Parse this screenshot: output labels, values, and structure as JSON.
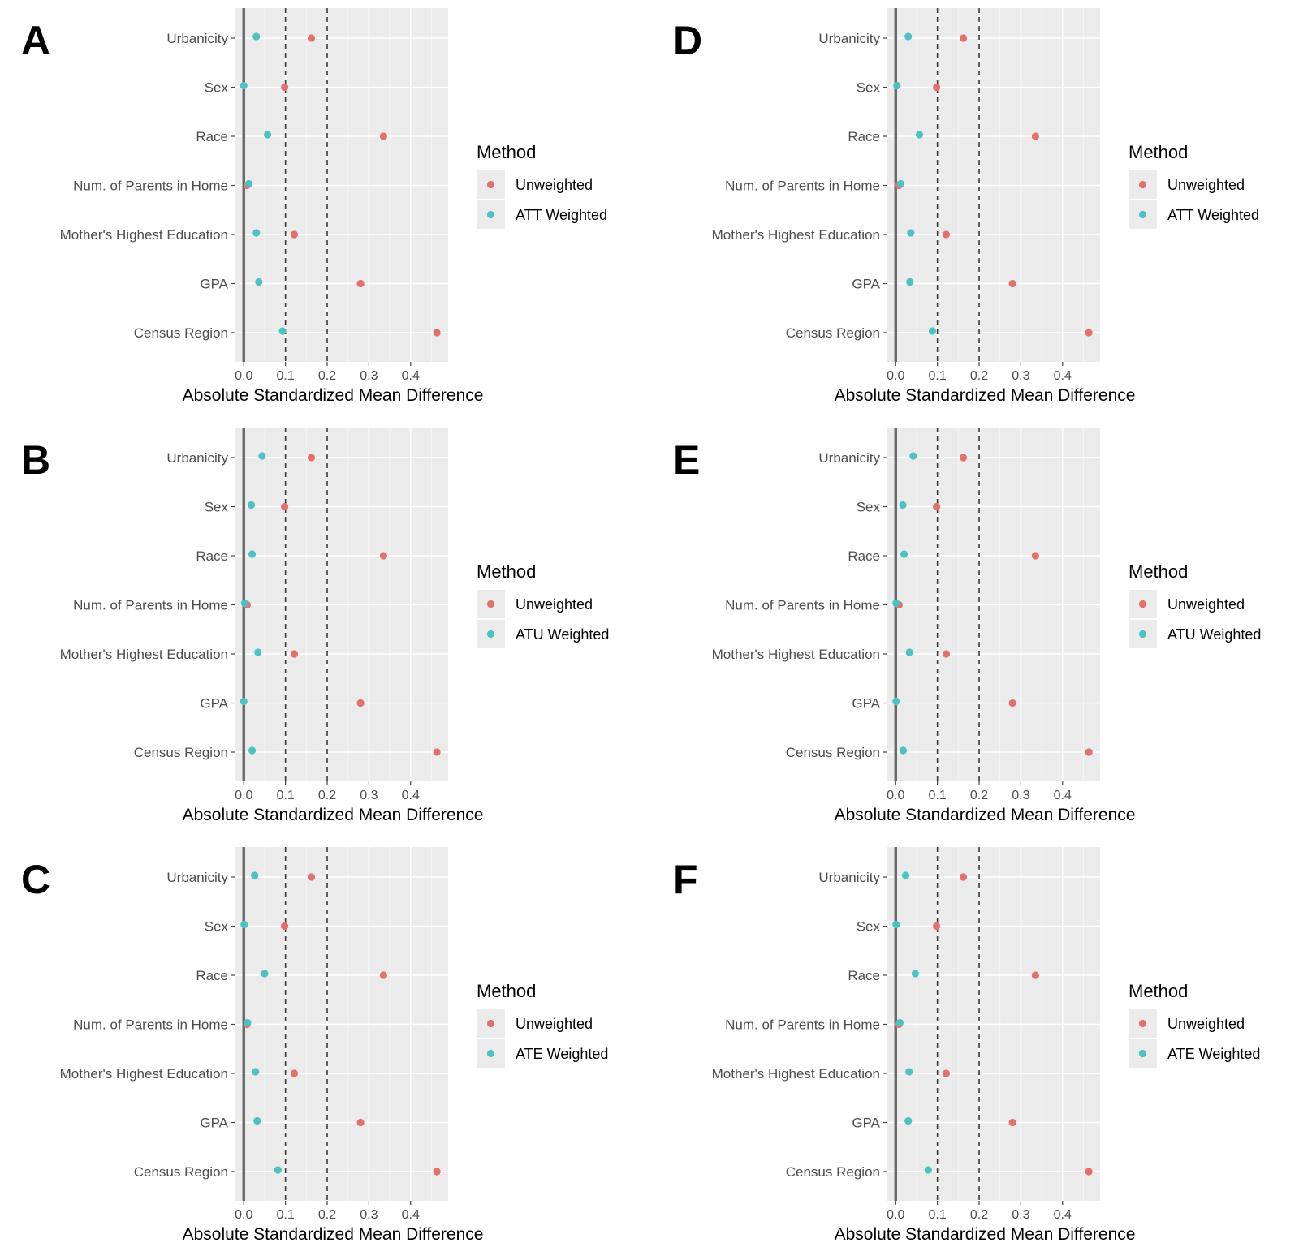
{
  "legend_title": "Method",
  "chart_data": [
    {
      "panel": "A",
      "type": "scatter",
      "xlabel": "Absolute Standardized Mean Difference",
      "xticks": [
        "0.0",
        "0.1",
        "0.2",
        "0.3",
        "0.4"
      ],
      "xlim": [
        -0.02,
        0.49
      ],
      "thresholds": [
        0.1,
        0.2
      ],
      "categories": [
        "Urbanicity",
        "Sex",
        "Race",
        "Num. of Parents in Home",
        "Mother's Highest Education",
        "GPA",
        "Census Region"
      ],
      "legend_title": "Method",
      "series": [
        {
          "name": "Unweighted",
          "color": "#e4706a",
          "values": [
            0.162,
            0.098,
            0.335,
            0.008,
            0.121,
            0.28,
            0.463
          ]
        },
        {
          "name": "ATT Weighted",
          "color": "#4cc2c4",
          "values": [
            0.03,
            0.0,
            0.057,
            0.012,
            0.03,
            0.036,
            0.093
          ]
        }
      ]
    },
    {
      "panel": "B",
      "type": "scatter",
      "xlabel": "Absolute Standardized Mean Difference",
      "xticks": [
        "0.0",
        "0.1",
        "0.2",
        "0.3",
        "0.4"
      ],
      "xlim": [
        -0.02,
        0.49
      ],
      "thresholds": [
        0.1,
        0.2
      ],
      "categories": [
        "Urbanicity",
        "Sex",
        "Race",
        "Num. of Parents in Home",
        "Mother's Highest Education",
        "GPA",
        "Census Region"
      ],
      "legend_title": "Method",
      "series": [
        {
          "name": "Unweighted",
          "color": "#e4706a",
          "values": [
            0.162,
            0.098,
            0.335,
            0.008,
            0.121,
            0.28,
            0.463
          ]
        },
        {
          "name": "ATU Weighted",
          "color": "#4cc2c4",
          "values": [
            0.044,
            0.018,
            0.02,
            0.002,
            0.034,
            0.0,
            0.02
          ]
        }
      ]
    },
    {
      "panel": "C",
      "type": "scatter",
      "xlabel": "Absolute Standardized Mean Difference",
      "xticks": [
        "0.0",
        "0.1",
        "0.2",
        "0.3",
        "0.4"
      ],
      "xlim": [
        -0.02,
        0.49
      ],
      "thresholds": [
        0.1,
        0.2
      ],
      "categories": [
        "Urbanicity",
        "Sex",
        "Race",
        "Num. of Parents in Home",
        "Mother's Highest Education",
        "GPA",
        "Census Region"
      ],
      "legend_title": "Method",
      "series": [
        {
          "name": "Unweighted",
          "color": "#e4706a",
          "values": [
            0.162,
            0.098,
            0.335,
            0.008,
            0.121,
            0.28,
            0.463
          ]
        },
        {
          "name": "ATE Weighted",
          "color": "#4cc2c4",
          "values": [
            0.026,
            0.001,
            0.05,
            0.009,
            0.028,
            0.032,
            0.082
          ]
        }
      ]
    },
    {
      "panel": "D",
      "type": "scatter",
      "xlabel": "Absolute Standardized Mean Difference",
      "xticks": [
        "0.0",
        "0.1",
        "0.2",
        "0.3",
        "0.4"
      ],
      "xlim": [
        -0.02,
        0.49
      ],
      "thresholds": [
        0.1,
        0.2
      ],
      "categories": [
        "Urbanicity",
        "Sex",
        "Race",
        "Num. of Parents in Home",
        "Mother's Highest Education",
        "GPA",
        "Census Region"
      ],
      "legend_title": "Method",
      "series": [
        {
          "name": "Unweighted",
          "color": "#e4706a",
          "values": [
            0.162,
            0.098,
            0.335,
            0.008,
            0.121,
            0.28,
            0.463
          ]
        },
        {
          "name": "ATT Weighted",
          "color": "#4cc2c4",
          "values": [
            0.03,
            0.003,
            0.057,
            0.012,
            0.036,
            0.034,
            0.088
          ]
        }
      ]
    },
    {
      "panel": "E",
      "type": "scatter",
      "xlabel": "Absolute Standardized Mean Difference",
      "xticks": [
        "0.0",
        "0.1",
        "0.2",
        "0.3",
        "0.4"
      ],
      "xlim": [
        -0.02,
        0.49
      ],
      "thresholds": [
        0.1,
        0.2
      ],
      "categories": [
        "Urbanicity",
        "Sex",
        "Race",
        "Num. of Parents in Home",
        "Mother's Highest Education",
        "GPA",
        "Census Region"
      ],
      "legend_title": "Method",
      "series": [
        {
          "name": "Unweighted",
          "color": "#e4706a",
          "values": [
            0.162,
            0.098,
            0.335,
            0.008,
            0.121,
            0.28,
            0.463
          ]
        },
        {
          "name": "ATU Weighted",
          "color": "#4cc2c4",
          "values": [
            0.042,
            0.017,
            0.02,
            0.001,
            0.033,
            0.001,
            0.018
          ]
        }
      ]
    },
    {
      "panel": "F",
      "type": "scatter",
      "xlabel": "Absolute Standardized Mean Difference",
      "xticks": [
        "0.0",
        "0.1",
        "0.2",
        "0.3",
        "0.4"
      ],
      "xlim": [
        -0.02,
        0.49
      ],
      "thresholds": [
        0.1,
        0.2
      ],
      "categories": [
        "Urbanicity",
        "Sex",
        "Race",
        "Num. of Parents in Home",
        "Mother's Highest Education",
        "GPA",
        "Census Region"
      ],
      "legend_title": "Method",
      "series": [
        {
          "name": "Unweighted",
          "color": "#e4706a",
          "values": [
            0.162,
            0.098,
            0.335,
            0.008,
            0.121,
            0.28,
            0.463
          ]
        },
        {
          "name": "ATE Weighted",
          "color": "#4cc2c4",
          "values": [
            0.024,
            0.001,
            0.047,
            0.01,
            0.032,
            0.03,
            0.078
          ]
        }
      ]
    }
  ]
}
